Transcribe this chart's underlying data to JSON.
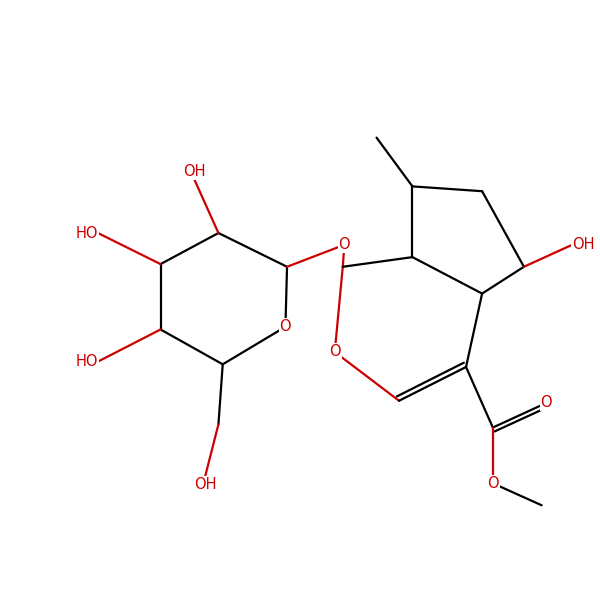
{
  "bg_color": "#ffffff",
  "bond_color": "#000000",
  "heteroatom_color": "#cc0000",
  "line_width": 1.6,
  "font_size": 10.5,
  "fig_size": [
    6.0,
    6.0
  ],
  "dpi": 100,
  "xlim": [
    -0.5,
    10.5
  ],
  "ylim": [
    0.5,
    10.0
  ]
}
